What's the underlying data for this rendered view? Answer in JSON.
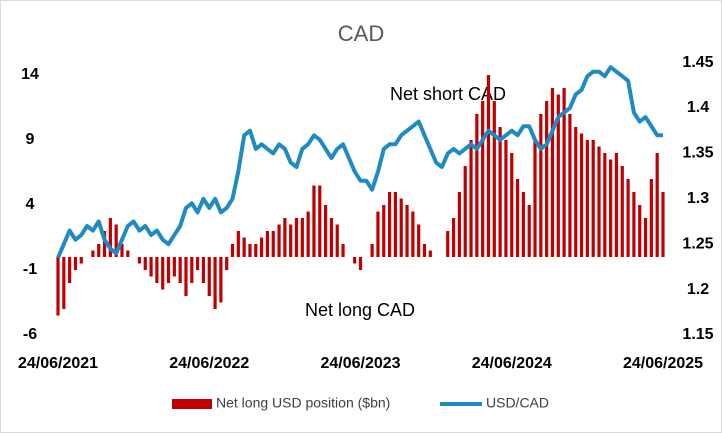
{
  "chart_data": {
    "type": "bar-line",
    "title": "CAD",
    "categories": [
      "24/06/2021",
      null,
      null,
      null,
      null,
      null,
      null,
      null,
      null,
      null,
      null,
      null,
      null,
      null,
      null,
      null,
      null,
      null,
      null,
      null,
      null,
      null,
      null,
      null,
      null,
      null,
      "24/06/2022",
      null,
      null,
      null,
      null,
      null,
      null,
      null,
      null,
      null,
      null,
      null,
      null,
      null,
      null,
      null,
      null,
      null,
      null,
      null,
      null,
      null,
      null,
      null,
      null,
      null,
      "24/06/2023",
      null,
      null,
      null,
      null,
      null,
      null,
      null,
      null,
      null,
      null,
      null,
      null,
      null,
      null,
      null,
      null,
      null,
      null,
      null,
      null,
      null,
      null,
      null,
      null,
      null,
      "24/06/2024",
      null,
      null,
      null,
      null,
      null,
      null,
      null,
      null,
      null,
      null,
      null,
      null,
      null,
      null,
      null,
      null,
      null,
      null,
      null,
      null,
      null,
      null,
      null,
      null,
      null,
      "24/06/2025"
    ],
    "series": [
      {
        "name": "Net long USD position ($bn)",
        "color": "#c00000",
        "axis": "y",
        "values": [
          -4.5,
          -4,
          -2,
          -1,
          -0.5,
          0,
          0.5,
          1,
          2,
          3,
          2.5,
          1,
          0.5,
          0,
          -0.5,
          -1,
          -1.5,
          -2,
          -2.5,
          -2,
          -1.5,
          -2,
          -3,
          -2,
          -1,
          -2,
          -3,
          -4,
          -3.5,
          -1,
          1,
          2,
          1.5,
          1,
          1,
          1.5,
          2,
          2,
          2.5,
          3,
          2.5,
          3,
          3,
          3.5,
          5.5,
          5.5,
          4,
          3,
          2.5,
          1,
          0,
          -0.5,
          -1,
          0,
          1,
          3.5,
          4,
          5,
          5,
          4.5,
          4,
          3.5,
          2.5,
          1,
          0.5,
          0,
          0,
          2,
          3,
          5,
          7,
          9,
          11,
          12,
          14,
          12,
          10,
          9,
          8,
          6,
          5,
          4,
          9,
          11,
          12,
          13,
          12.5,
          13,
          11,
          10,
          9.5,
          9,
          9,
          8.5,
          8,
          7.5,
          8,
          7,
          6,
          5,
          4,
          3,
          6,
          8,
          5
        ]
      },
      {
        "name": "USD/CAD",
        "color": "#1f8bc2",
        "axis": "y2",
        "values": [
          1.235,
          1.25,
          1.265,
          1.255,
          1.26,
          1.27,
          1.265,
          1.275,
          1.255,
          1.245,
          1.24,
          1.255,
          1.27,
          1.275,
          1.265,
          1.27,
          1.26,
          1.265,
          1.255,
          1.25,
          1.26,
          1.27,
          1.29,
          1.295,
          1.285,
          1.3,
          1.29,
          1.3,
          1.285,
          1.29,
          1.3,
          1.33,
          1.37,
          1.375,
          1.355,
          1.36,
          1.355,
          1.35,
          1.36,
          1.355,
          1.34,
          1.335,
          1.355,
          1.36,
          1.37,
          1.365,
          1.355,
          1.345,
          1.355,
          1.36,
          1.345,
          1.33,
          1.32,
          1.32,
          1.31,
          1.33,
          1.355,
          1.36,
          1.36,
          1.37,
          1.375,
          1.38,
          1.385,
          1.37,
          1.355,
          1.34,
          1.335,
          1.35,
          1.355,
          1.35,
          1.355,
          1.36,
          1.355,
          1.365,
          1.375,
          1.37,
          1.365,
          1.37,
          1.375,
          1.37,
          1.38,
          1.38,
          1.365,
          1.355,
          1.36,
          1.375,
          1.39,
          1.395,
          1.4,
          1.415,
          1.42,
          1.435,
          1.44,
          1.44,
          1.435,
          1.445,
          1.44,
          1.435,
          1.43,
          1.395,
          1.385,
          1.39,
          1.38,
          1.37,
          1.37
        ]
      }
    ],
    "ylim": [
      -6,
      16
    ],
    "yticks": [
      -6,
      -1,
      4,
      9,
      14
    ],
    "y2lim": [
      1.15,
      1.465
    ],
    "y2ticks": [
      1.15,
      1.2,
      1.25,
      1.3,
      1.35,
      1.4,
      1.45
    ],
    "annotations": [
      "Net short CAD",
      "Net long CAD"
    ]
  }
}
